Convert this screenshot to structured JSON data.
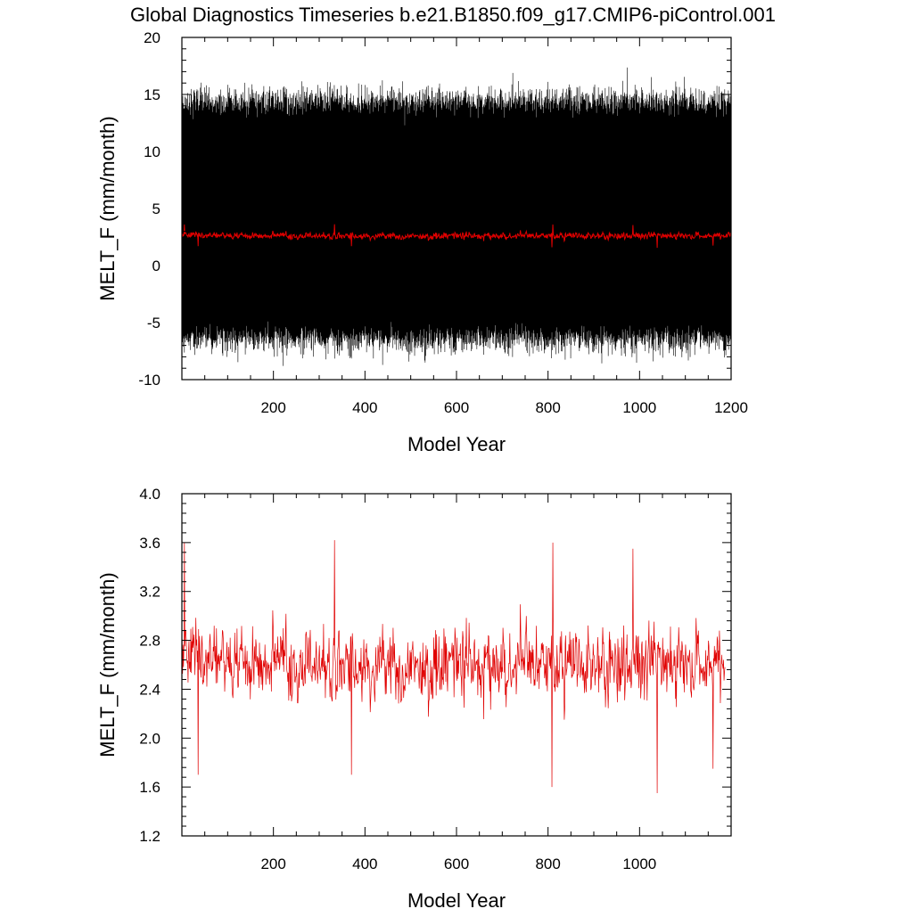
{
  "title": "Global Diagnostics Timeseries b.e21.B1850.f09_g17.CMIP6-piControl.001",
  "chart_data": [
    {
      "type": "line",
      "xlabel": "Model Year",
      "ylabel": "MELT_F (mm/month)",
      "xlim": [
        0,
        1200
      ],
      "ylim": [
        -10,
        20
      ],
      "xticks": [
        "200",
        "400",
        "600",
        "800",
        "1000",
        "1200"
      ],
      "yticks": [
        "-10",
        "-5",
        "0",
        "5",
        "10",
        "15",
        "20"
      ],
      "grid": false,
      "series": [
        {
          "color": "#000000",
          "resolution": "monthly",
          "annual_cycle_min_approx": -7,
          "annual_cycle_max_approx": 14,
          "overall_min_approx": -8.8,
          "overall_max_approx": 17.4
        },
        {
          "color": "#e00000",
          "resolution": "annual",
          "mean_approx": 2.6,
          "min_approx": 1.55,
          "max_approx": 3.62
        }
      ]
    },
    {
      "type": "line",
      "xlabel": "Model Year",
      "ylabel": "MELT_F (mm/month)",
      "xlim": [
        0,
        1200
      ],
      "ylim": [
        1.2,
        4.0
      ],
      "xticks": [
        "200",
        "400",
        "600",
        "800",
        "1000"
      ],
      "yticks": [
        "1.2",
        "1.6",
        "2.0",
        "2.4",
        "2.8",
        "3.2",
        "3.6",
        "4.0"
      ],
      "grid": false,
      "series": [
        {
          "color": "#e00000",
          "resolution": "annual",
          "mean_approx": 2.6,
          "min_approx": 1.55,
          "max_approx": 3.62,
          "notable_peaks": [
            [
              5,
              3.6
            ],
            [
              333,
              3.62
            ],
            [
              810,
              3.6
            ],
            [
              985,
              3.55
            ]
          ],
          "notable_troughs": [
            [
              35,
              1.7
            ],
            [
              370,
              1.7
            ],
            [
              808,
              1.6
            ],
            [
              1038,
              1.55
            ],
            [
              1160,
              1.75
            ]
          ]
        }
      ]
    }
  ]
}
